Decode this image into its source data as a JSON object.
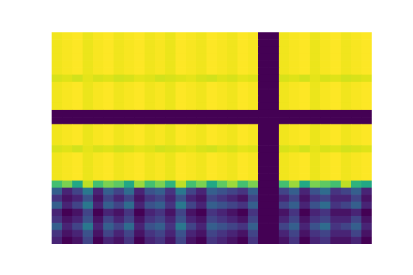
{
  "chart_data": {
    "type": "heatmap",
    "color": "viridis",
    "zlim": [
      0,
      1
    ],
    "tick_labels": false,
    "cells": [
      [
        0.98,
        0.99,
        1,
        0.97,
        0.99,
        1,
        0.98,
        0.99,
        1,
        0.98,
        0.99,
        0.97,
        1,
        0.99,
        0.98,
        1,
        0.99,
        0.98,
        1,
        0.99,
        0,
        0,
        0.98,
        0.99,
        1,
        0.97,
        0.99,
        1,
        0.98,
        0.99,
        1
      ],
      [
        0.98,
        0.99,
        1,
        0.97,
        0.99,
        1,
        0.98,
        0.99,
        1,
        0.98,
        0.99,
        0.97,
        1,
        0.99,
        0.98,
        1,
        0.99,
        0.98,
        1,
        0.99,
        0,
        0,
        0.98,
        0.99,
        1,
        0.97,
        0.99,
        1,
        0.98,
        0.99,
        1
      ],
      [
        0.98,
        0.99,
        1,
        0.97,
        0.99,
        1,
        0.98,
        0.99,
        1,
        0.98,
        0.99,
        0.97,
        1,
        0.99,
        0.98,
        1,
        0.99,
        0.98,
        1,
        0.99,
        0,
        0,
        0.98,
        0.99,
        1,
        0.97,
        0.99,
        1,
        0.98,
        0.99,
        1
      ],
      [
        0.98,
        0.99,
        1,
        0.97,
        0.99,
        1,
        0.98,
        0.99,
        1,
        0.98,
        0.99,
        0.97,
        1,
        0.99,
        0.98,
        1,
        0.99,
        0.98,
        1,
        0.99,
        0,
        0,
        0.98,
        0.99,
        1,
        0.97,
        0.99,
        1,
        0.98,
        0.99,
        1
      ],
      [
        0.98,
        0.99,
        1,
        0.97,
        0.99,
        1,
        0.98,
        0.99,
        1,
        0.98,
        0.99,
        0.97,
        1,
        0.99,
        0.98,
        1,
        0.99,
        0.98,
        1,
        0.99,
        0,
        0,
        0.98,
        0.99,
        1,
        0.97,
        0.99,
        1,
        0.98,
        0.99,
        1
      ],
      [
        0.98,
        0.99,
        1,
        0.97,
        0.99,
        1,
        0.98,
        0.99,
        1,
        0.98,
        0.99,
        0.97,
        1,
        0.99,
        0.98,
        1,
        0.99,
        0.98,
        1,
        0.99,
        0,
        0,
        0.98,
        0.99,
        1,
        0.97,
        0.99,
        1,
        0.98,
        0.99,
        1
      ],
      [
        0.94,
        0.95,
        0.93,
        0.96,
        0.94,
        0.95,
        0.93,
        0.94,
        0.96,
        0.95,
        0.93,
        0.94,
        0.95,
        0.96,
        0.94,
        0.93,
        0.95,
        0.94,
        0.96,
        0.95,
        0,
        0,
        0.94,
        0.95,
        0.93,
        0.96,
        0.94,
        0.95,
        0.93,
        0.94,
        0.95
      ],
      [
        0.98,
        0.99,
        1,
        0.97,
        0.99,
        1,
        0.98,
        0.99,
        1,
        0.98,
        0.99,
        0.97,
        1,
        0.99,
        0.98,
        1,
        0.99,
        0.98,
        1,
        0.99,
        0,
        0,
        0.98,
        0.99,
        1,
        0.97,
        0.99,
        1,
        0.98,
        0.99,
        1
      ],
      [
        0.98,
        0.99,
        1,
        0.97,
        0.99,
        1,
        0.98,
        0.99,
        1,
        0.98,
        0.99,
        0.97,
        1,
        0.99,
        0.98,
        1,
        0.99,
        0.98,
        1,
        0.99,
        0,
        0,
        0.98,
        0.99,
        1,
        0.97,
        0.99,
        1,
        0.98,
        0.99,
        1
      ],
      [
        0.98,
        0.99,
        1,
        0.97,
        0.99,
        1,
        0.98,
        0.99,
        1,
        0.98,
        0.99,
        0.97,
        1,
        0.99,
        0.98,
        1,
        0.99,
        0.98,
        1,
        0.99,
        0,
        0,
        0.98,
        0.99,
        1,
        0.97,
        0.99,
        1,
        0.98,
        0.99,
        1
      ],
      [
        0.98,
        0.99,
        1,
        0.97,
        0.99,
        1,
        0.98,
        0.99,
        1,
        0.98,
        0.99,
        0.97,
        1,
        0.99,
        0.98,
        1,
        0.99,
        0.98,
        1,
        0.99,
        0,
        0,
        0.98,
        0.99,
        1,
        0.97,
        0.99,
        1,
        0.98,
        0.99,
        1
      ],
      [
        0,
        0,
        0,
        0,
        0,
        0,
        0,
        0,
        0,
        0,
        0,
        0,
        0,
        0,
        0,
        0,
        0,
        0,
        0,
        0,
        0,
        0,
        0,
        0,
        0,
        0,
        0,
        0,
        0,
        0,
        0
      ],
      [
        0,
        0,
        0,
        0,
        0,
        0,
        0,
        0,
        0,
        0,
        0,
        0,
        0,
        0,
        0,
        0,
        0,
        0,
        0,
        0,
        0,
        0,
        0,
        0,
        0,
        0,
        0,
        0,
        0,
        0,
        0
      ],
      [
        0.98,
        0.99,
        1,
        0.97,
        0.99,
        1,
        0.98,
        0.99,
        1,
        0.98,
        0.99,
        0.97,
        1,
        0.99,
        0.98,
        1,
        0.99,
        0.98,
        1,
        0.99,
        0,
        0,
        0.98,
        0.99,
        1,
        0.97,
        0.99,
        1,
        0.98,
        0.99,
        1
      ],
      [
        0.98,
        0.99,
        1,
        0.97,
        0.99,
        1,
        0.98,
        0.99,
        1,
        0.98,
        0.99,
        0.97,
        1,
        0.99,
        0.98,
        1,
        0.99,
        0.98,
        1,
        0.99,
        0,
        0,
        0.98,
        0.99,
        1,
        0.97,
        0.99,
        1,
        0.98,
        0.99,
        1
      ],
      [
        0.98,
        0.99,
        1,
        0.97,
        0.99,
        1,
        0.98,
        0.99,
        1,
        0.98,
        0.99,
        0.97,
        1,
        0.99,
        0.98,
        1,
        0.99,
        0.98,
        1,
        0.99,
        0,
        0,
        0.98,
        0.99,
        1,
        0.97,
        0.99,
        1,
        0.98,
        0.99,
        1
      ],
      [
        0.94,
        0.95,
        0.93,
        0.96,
        0.94,
        0.95,
        0.93,
        0.94,
        0.96,
        0.95,
        0.93,
        0.94,
        0.95,
        0.96,
        0.94,
        0.93,
        0.95,
        0.94,
        0.96,
        0.95,
        0,
        0,
        0.94,
        0.95,
        0.93,
        0.96,
        0.94,
        0.95,
        0.93,
        0.94,
        0.95
      ],
      [
        0.98,
        0.99,
        1,
        0.97,
        0.99,
        1,
        0.98,
        0.99,
        1,
        0.98,
        0.99,
        0.97,
        1,
        0.99,
        0.98,
        1,
        0.99,
        0.98,
        1,
        0.99,
        0,
        0,
        0.98,
        0.99,
        1,
        0.97,
        0.99,
        1,
        0.98,
        0.99,
        1
      ],
      [
        0.98,
        0.99,
        1,
        0.97,
        0.99,
        1,
        0.98,
        0.99,
        1,
        0.98,
        0.99,
        0.97,
        1,
        0.99,
        0.98,
        1,
        0.99,
        0.98,
        1,
        0.99,
        0,
        0,
        0.98,
        0.99,
        1,
        0.97,
        0.99,
        1,
        0.98,
        0.99,
        1
      ],
      [
        0.98,
        0.99,
        1,
        0.97,
        0.99,
        1,
        0.98,
        0.99,
        1,
        0.98,
        0.99,
        0.97,
        1,
        0.99,
        0.98,
        1,
        0.99,
        0.98,
        1,
        0.99,
        0,
        0,
        0.98,
        0.99,
        1,
        0.97,
        0.99,
        1,
        0.98,
        0.99,
        1
      ],
      [
        0.98,
        0.99,
        1,
        0.97,
        0.99,
        1,
        0.98,
        0.99,
        1,
        0.98,
        0.99,
        0.97,
        1,
        0.99,
        0.98,
        1,
        0.99,
        0.98,
        1,
        0.99,
        0,
        0,
        0.98,
        0.99,
        1,
        0.97,
        0.99,
        1,
        0.98,
        0.99,
        1
      ],
      [
        0.7,
        0.8,
        0.6,
        0.9,
        0.7,
        0.8,
        0.75,
        0.6,
        0.85,
        0.7,
        0.8,
        0.65,
        0.9,
        0.7,
        0.8,
        0.6,
        0.75,
        0.85,
        0.7,
        0.8,
        0,
        0,
        0.7,
        0.85,
        0.6,
        0.8,
        0.75,
        0.7,
        0.9,
        0.65,
        0.6
      ],
      [
        0.3,
        0.1,
        0.2,
        0.4,
        0.1,
        0.3,
        0.2,
        0.35,
        0.1,
        0.25,
        0.3,
        0.15,
        0.4,
        0.2,
        0.1,
        0.3,
        0.25,
        0.2,
        0.15,
        0.3,
        0,
        0,
        0.2,
        0.3,
        0.1,
        0.25,
        0.35,
        0.15,
        0.2,
        0.3,
        0.1
      ],
      [
        0.15,
        0.05,
        0.1,
        0.25,
        0.05,
        0.2,
        0.1,
        0.2,
        0.05,
        0.15,
        0.2,
        0.1,
        0.25,
        0.1,
        0.05,
        0.2,
        0.15,
        0.1,
        0.05,
        0.2,
        0,
        0,
        0.1,
        0.2,
        0.05,
        0.15,
        0.2,
        0.1,
        0.1,
        0.2,
        0.05
      ],
      [
        0.3,
        0.1,
        0.2,
        0.4,
        0.1,
        0.3,
        0.2,
        0.35,
        0.1,
        0.25,
        0.3,
        0.15,
        0.4,
        0.2,
        0.1,
        0.3,
        0.25,
        0.2,
        0.15,
        0.3,
        0,
        0,
        0.2,
        0.3,
        0.1,
        0.25,
        0.35,
        0.15,
        0.2,
        0.3,
        0.1
      ],
      [
        0.1,
        0,
        0.05,
        0.2,
        0,
        0.1,
        0.05,
        0.15,
        0,
        0.1,
        0.15,
        0.05,
        0.2,
        0.05,
        0,
        0.15,
        0.1,
        0.05,
        0,
        0.15,
        0,
        0,
        0.05,
        0.15,
        0,
        0.1,
        0.15,
        0.05,
        0.05,
        0.1,
        0
      ],
      [
        0.15,
        0.05,
        0.1,
        0.25,
        0.05,
        0.2,
        0.1,
        0.2,
        0.05,
        0.15,
        0.2,
        0.1,
        0.25,
        0.1,
        0.05,
        0.2,
        0.15,
        0.1,
        0.05,
        0.2,
        0,
        0,
        0.1,
        0.2,
        0.05,
        0.15,
        0.2,
        0.1,
        0.1,
        0.2,
        0.05
      ],
      [
        0.3,
        0.1,
        0.2,
        0.4,
        0.1,
        0.3,
        0.2,
        0.35,
        0.1,
        0.25,
        0.3,
        0.15,
        0.4,
        0.2,
        0.1,
        0.3,
        0.25,
        0.2,
        0.15,
        0.3,
        0,
        0,
        0.2,
        0.3,
        0.1,
        0.25,
        0.35,
        0.15,
        0.2,
        0.3,
        0.1
      ],
      [
        0.15,
        0.05,
        0.1,
        0.25,
        0.05,
        0.2,
        0.1,
        0.2,
        0.05,
        0.15,
        0.2,
        0.1,
        0.25,
        0.1,
        0.05,
        0.2,
        0.15,
        0.1,
        0.05,
        0.2,
        0,
        0,
        0.1,
        0.2,
        0.05,
        0.15,
        0.2,
        0.1,
        0.1,
        0.2,
        0.05
      ],
      [
        0.1,
        0,
        0.05,
        0.2,
        0,
        0.1,
        0.05,
        0.15,
        0,
        0.1,
        0.15,
        0.05,
        0.2,
        0.05,
        0,
        0.15,
        0.1,
        0.05,
        0,
        0.15,
        0,
        0,
        0.05,
        0.15,
        0,
        0.1,
        0.15,
        0.05,
        0.05,
        0.1,
        0
      ]
    ]
  }
}
